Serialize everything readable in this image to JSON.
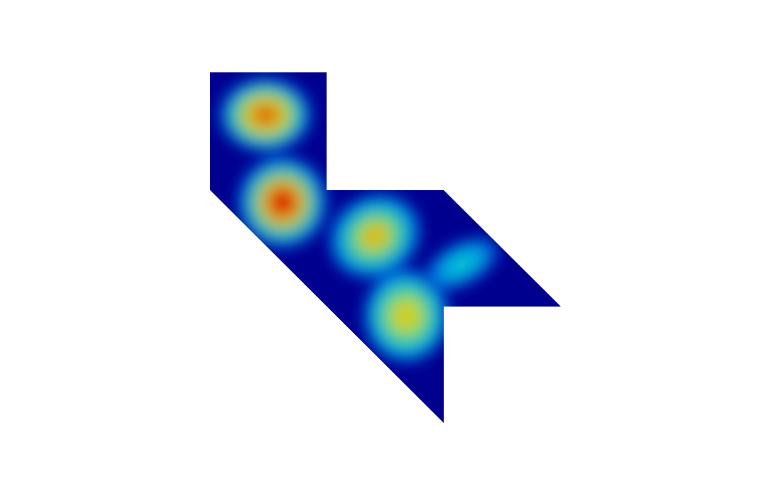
{
  "figure": {
    "type": "scalar-field-plot",
    "colormap": "jet",
    "colors": {
      "background": "#ffffff",
      "field_low": "#00008f",
      "field_mid_low": "#0040ff",
      "field_mid": "#00c0c8",
      "field_mid_high": "#d4d020",
      "field_high": "#c80000"
    },
    "domain_shape": "polygonal region with notch",
    "hotspot_count": 5
  }
}
